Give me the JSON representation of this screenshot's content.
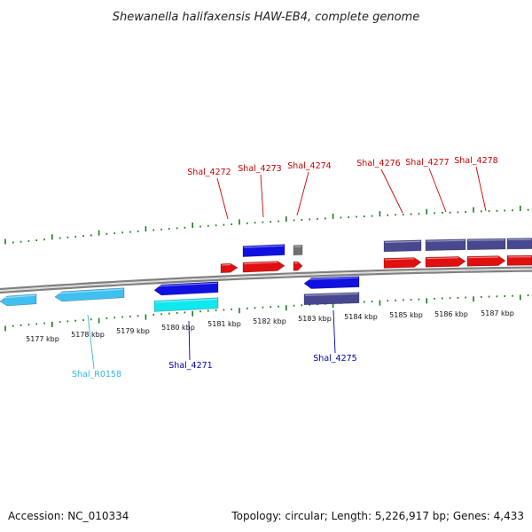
{
  "title": "Shewanella halifaxensis HAW-EB4, complete genome",
  "footer": {
    "accession": "Accession: NC_010334",
    "summary": "Topology: circular; Length: 5,226,917 bp; Genes: 4,433"
  },
  "colors": {
    "tick": "#1a7a1a",
    "backbone": "#808080",
    "gene_red": "#e01010",
    "gene_blue": "#1010e0",
    "gene_cyan": "#10e8f0",
    "gene_lightblue": "#40c0f0",
    "gene_purple": "#484890",
    "gene_gray": "#707070",
    "label_red": "#cc0000",
    "label_blue": "#0000aa",
    "label_cyan": "#30b8e0"
  },
  "chart_data": {
    "type": "genome-map",
    "axis_unit": "kbp",
    "tick_labels": [
      "5177 kbp",
      "5178 kbp",
      "5179 kbp",
      "5180 kbp",
      "5181 kbp",
      "5182 kbp",
      "5183 kbp",
      "5184 kbp",
      "5185 kbp",
      "5186 kbp",
      "5187 kbp"
    ],
    "gene_labels": [
      {
        "id": "Shal_4272",
        "color": "red"
      },
      {
        "id": "Shal_4273",
        "color": "red"
      },
      {
        "id": "Shal_4274",
        "color": "red"
      },
      {
        "id": "Shal_4276",
        "color": "red"
      },
      {
        "id": "Shal_4277",
        "color": "red"
      },
      {
        "id": "Shal_4278",
        "color": "red"
      },
      {
        "id": "Shal_R0158",
        "color": "cyan"
      },
      {
        "id": "Shal_4271",
        "color": "blue"
      },
      {
        "id": "Shal_4275",
        "color": "blue"
      }
    ]
  }
}
